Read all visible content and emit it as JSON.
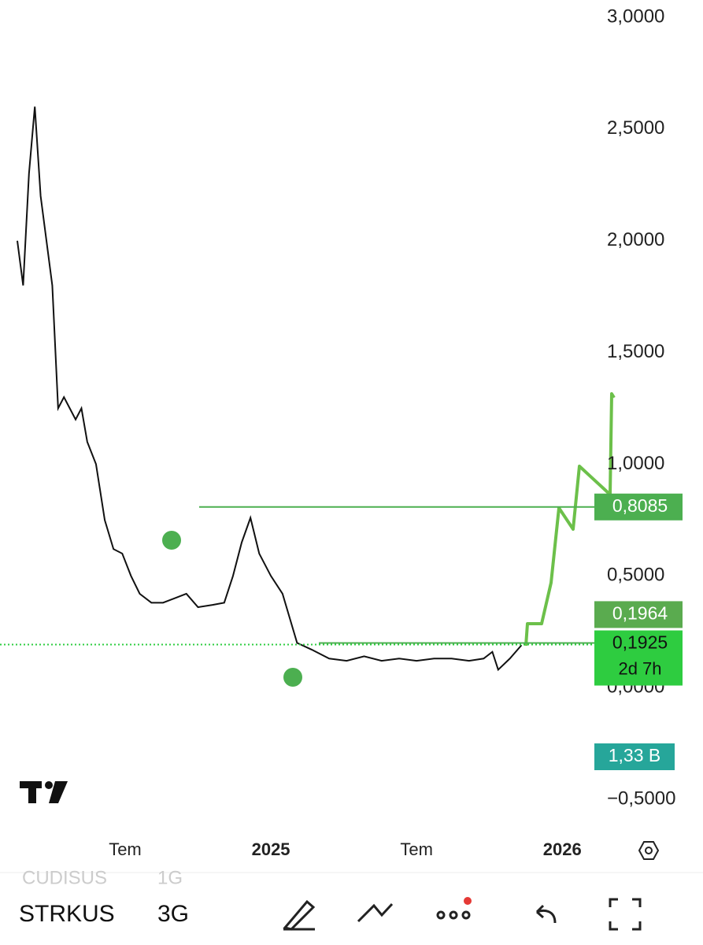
{
  "chart_data": {
    "type": "line",
    "symbol": "STRKUS",
    "interval": "3G",
    "other_symbol": "CUDISUS",
    "other_interval": "1G",
    "x": [
      2024.13,
      2024.15,
      2024.17,
      2024.19,
      2024.21,
      2024.23,
      2024.25,
      2024.27,
      2024.29,
      2024.31,
      2024.33,
      2024.35,
      2024.37,
      2024.4,
      2024.43,
      2024.46,
      2024.49,
      2024.52,
      2024.55,
      2024.59,
      2024.63,
      2024.67,
      2024.71,
      2024.75,
      2024.8,
      2024.84,
      2024.87,
      2024.9,
      2024.93,
      2024.96,
      2025.0,
      2025.04,
      2025.09,
      2025.14,
      2025.2,
      2025.26,
      2025.32,
      2025.38,
      2025.44,
      2025.5,
      2025.56,
      2025.62,
      2025.68,
      2025.73,
      2025.76,
      2025.78,
      2025.82,
      2025.86
    ],
    "series": [
      {
        "name": "STRKUS",
        "color": "#111111",
        "values": [
          2.0,
          1.8,
          2.3,
          2.6,
          2.2,
          2.0,
          1.8,
          1.25,
          1.3,
          1.25,
          1.2,
          1.25,
          1.1,
          1.0,
          0.75,
          0.62,
          0.6,
          0.5,
          0.42,
          0.38,
          0.38,
          0.4,
          0.42,
          0.36,
          0.37,
          0.38,
          0.5,
          0.65,
          0.76,
          0.6,
          0.5,
          0.42,
          0.2,
          0.17,
          0.13,
          0.12,
          0.14,
          0.12,
          0.13,
          0.12,
          0.13,
          0.13,
          0.12,
          0.13,
          0.16,
          0.08,
          0.13,
          0.19
        ]
      }
    ],
    "xlim": [
      2024.13,
      2026.11
    ],
    "xticks": [
      {
        "value": 2024.5,
        "label": "Tem"
      },
      {
        "value": 2025,
        "label": "2025"
      },
      {
        "value": 2025.5,
        "label": "Tem"
      },
      {
        "value": 2026,
        "label": "2026"
      }
    ],
    "ylim": [
      -0.5,
      3.0
    ],
    "yticks": [
      {
        "value": 3.0,
        "label": "3,0000"
      },
      {
        "value": 2.5,
        "label": "2,5000"
      },
      {
        "value": 2.0,
        "label": "2,0000"
      },
      {
        "value": 1.5,
        "label": "1,5000"
      },
      {
        "value": 1.0,
        "label": "1,0000"
      },
      {
        "value": 0.5,
        "label": "0,5000"
      },
      {
        "value": 0.0,
        "label": "0,0000"
      },
      {
        "value": -0.5,
        "label": "−0,5000"
      }
    ],
    "price_labels": [
      {
        "value": 0.8085,
        "label": "0,8085",
        "color": "#4caf50"
      },
      {
        "value": 0.1964,
        "label": "0,1964",
        "color": "#5aab4f"
      },
      {
        "value": 0.1925,
        "label": "0,1925",
        "sublabel": "2d 7h",
        "color": "#2ecc40"
      }
    ],
    "volume_label": "1,33 B",
    "volume_color": "#26a69a"
  }
}
